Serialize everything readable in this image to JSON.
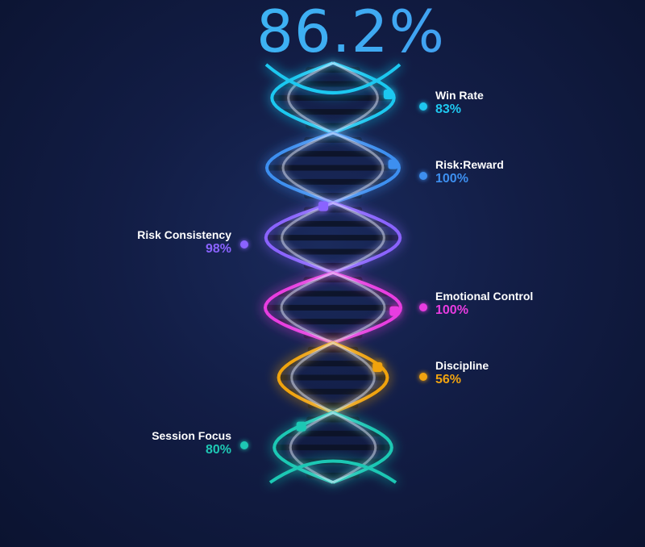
{
  "overall_score": "86.2%",
  "metrics": [
    {
      "name": "Win Rate",
      "value": "83%",
      "value_num": 83,
      "color": "#1ec8f0",
      "side": "right"
    },
    {
      "name": "Risk:Reward",
      "value": "100%",
      "value_num": 100,
      "color": "#3d8ff0",
      "side": "right"
    },
    {
      "name": "Risk Consistency",
      "value": "98%",
      "value_num": 98,
      "color": "#8a63ff",
      "side": "left"
    },
    {
      "name": "Emotional Control",
      "value": "100%",
      "value_num": 100,
      "color": "#e83ce0",
      "side": "right"
    },
    {
      "name": "Discipline",
      "value": "56%",
      "value_num": 56,
      "color": "#f0a310",
      "side": "right"
    },
    {
      "name": "Session Focus",
      "value": "80%",
      "value_num": 80,
      "color": "#1ec8b4",
      "side": "left"
    }
  ]
}
